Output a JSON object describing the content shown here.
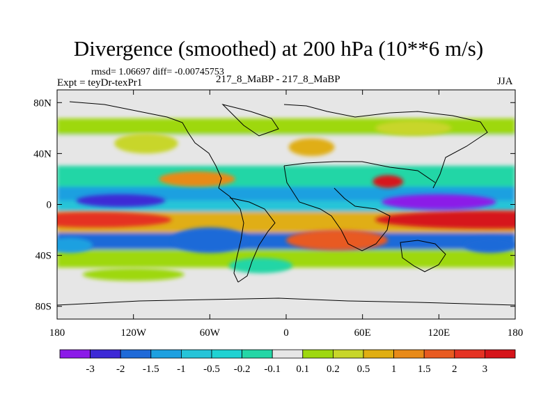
{
  "chart_data": {
    "type": "heatmap",
    "title": "Divergence (smoothed) at 200 hPa (10**6 m/s)",
    "stats": "rmsd= 1.06697 diff= -0.00745753",
    "left_label": "Expt = teyDr-texPr1",
    "center_label": "217_8_MaBP - 217_8_MaBP",
    "right_label": "JJA",
    "x_ticks": [
      "180",
      "120W",
      "60W",
      "0",
      "60E",
      "120E",
      "180"
    ],
    "y_ticks": [
      "80N",
      "40N",
      "0",
      "40S",
      "80S"
    ],
    "colorbar_labels": [
      "-3",
      "-2",
      "-1.5",
      "-1",
      "-0.5",
      "-0.2",
      "-0.1",
      "0.1",
      "0.2",
      "0.5",
      "1",
      "1.5",
      "2",
      "3"
    ],
    "colorbar_colors": [
      "#8b1ae8",
      "#3d29d6",
      "#1f6ad8",
      "#1ea0e0",
      "#26c4d8",
      "#24d6a6",
      "#e6e6e6",
      "#9ed80f",
      "#c8d62a",
      "#e0ae12",
      "#e88a18",
      "#e85a20",
      "#e53223",
      "#d6141a"
    ],
    "blobs": [
      {
        "lon": 160,
        "lat": -12,
        "rx": 90,
        "ry": 7,
        "value": 3
      },
      {
        "lon": -150,
        "lat": -12,
        "rx": 60,
        "ry": 6,
        "value": 2
      },
      {
        "lon": 40,
        "lat": -28,
        "rx": 40,
        "ry": 8,
        "value": 1.5
      },
      {
        "lon": 80,
        "lat": 18,
        "rx": 12,
        "ry": 5,
        "value": 3
      },
      {
        "lon": 120,
        "lat": 2,
        "rx": 45,
        "ry": 6,
        "value": -3
      },
      {
        "lon": -130,
        "lat": 3,
        "rx": 35,
        "ry": 5,
        "value": -2
      },
      {
        "lon": -60,
        "lat": -28,
        "rx": 30,
        "ry": 10,
        "value": -1.5
      },
      {
        "lon": 160,
        "lat": -32,
        "rx": 20,
        "ry": 6,
        "value": -1.5
      },
      {
        "lon": -170,
        "lat": -32,
        "rx": 18,
        "ry": 6,
        "value": -1
      },
      {
        "lon": -70,
        "lat": 20,
        "rx": 30,
        "ry": 6,
        "value": 1
      },
      {
        "lon": 20,
        "lat": 45,
        "rx": 18,
        "ry": 7,
        "value": 0.5
      },
      {
        "lon": -110,
        "lat": 48,
        "rx": 25,
        "ry": 8,
        "value": 0.2
      },
      {
        "lon": 100,
        "lat": 60,
        "rx": 30,
        "ry": 6,
        "value": 0.2
      },
      {
        "lon": -20,
        "lat": -48,
        "rx": 25,
        "ry": 6,
        "value": -0.2
      },
      {
        "lon": -120,
        "lat": -55,
        "rx": 40,
        "ry": 5,
        "value": 0.1
      }
    ]
  }
}
